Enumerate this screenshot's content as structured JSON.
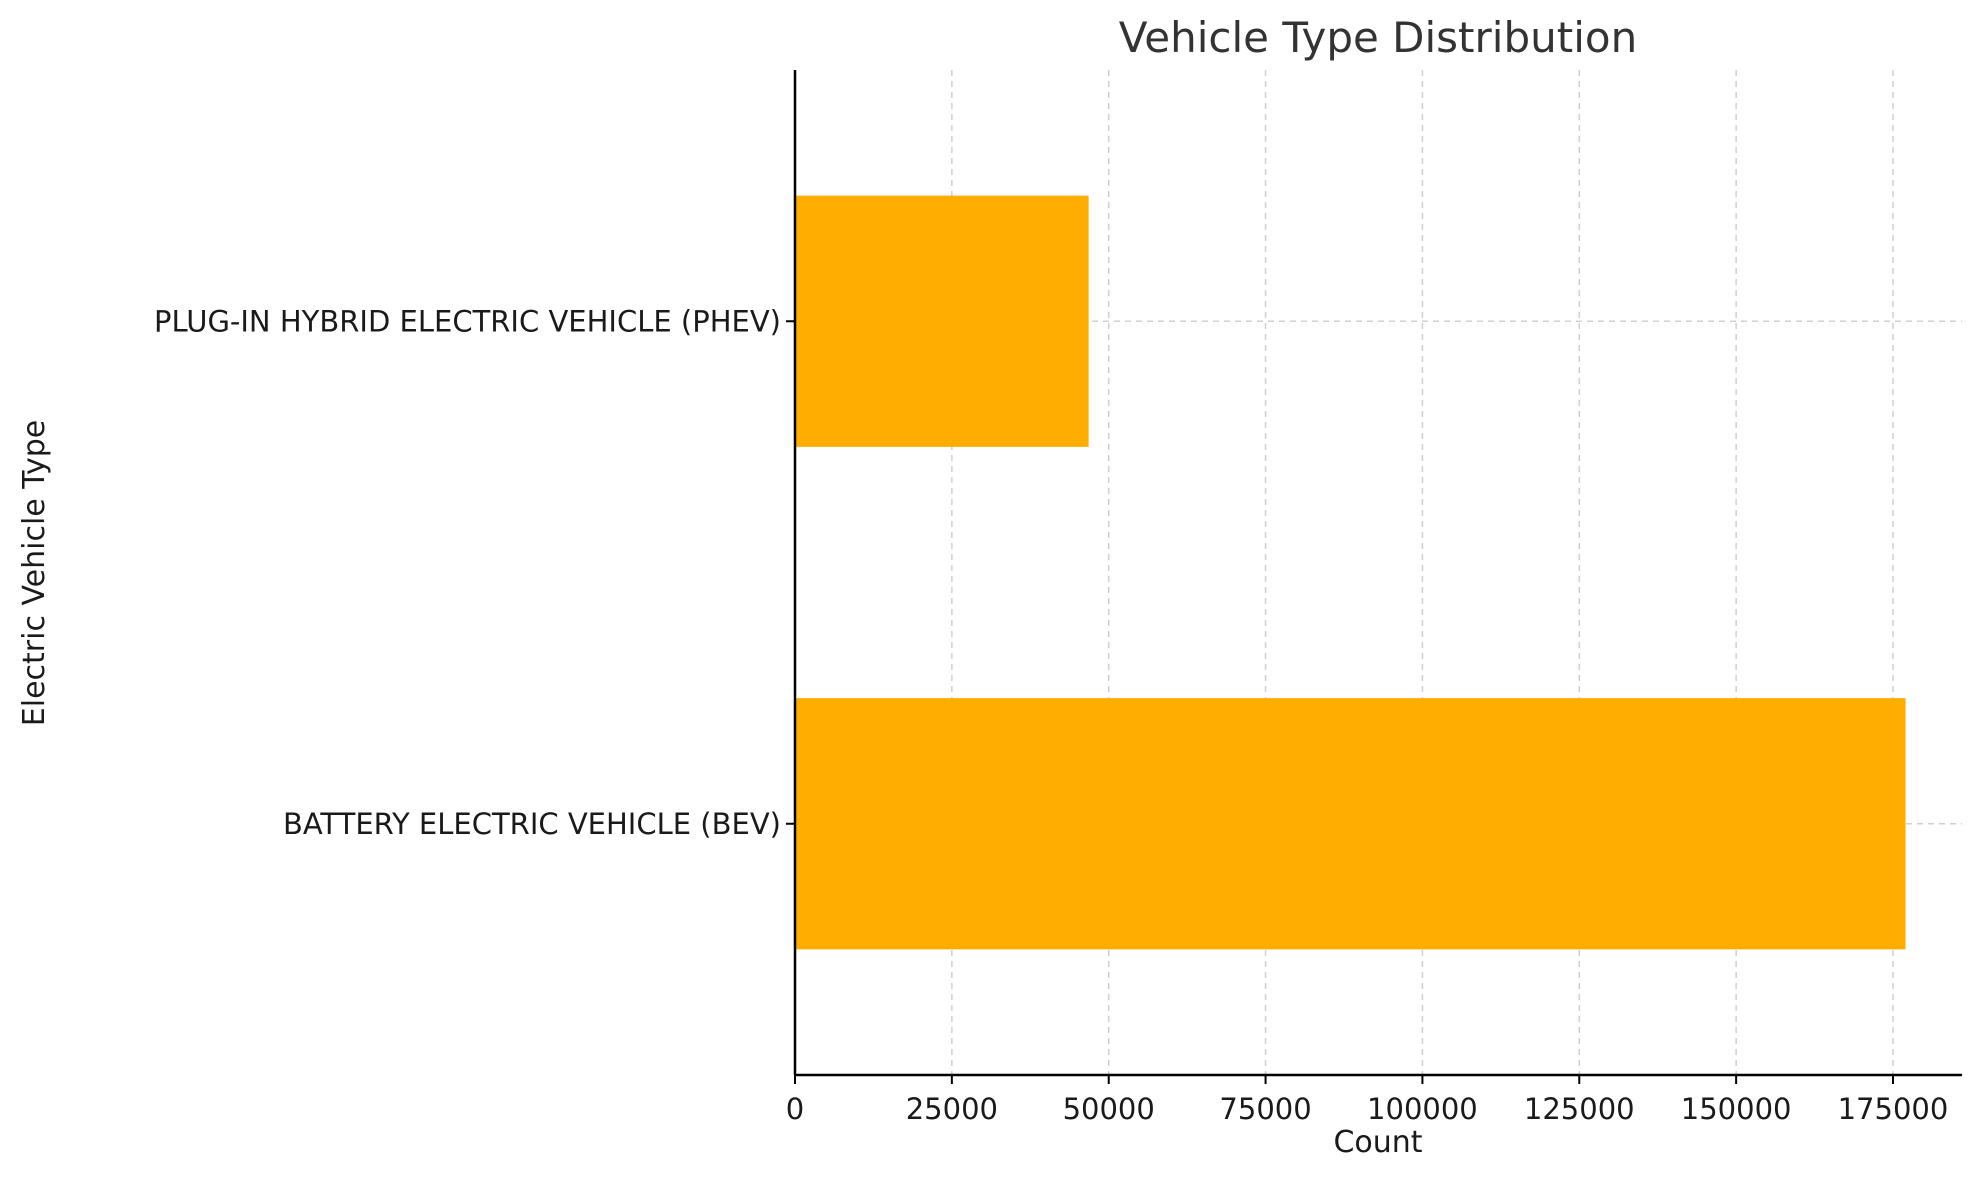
{
  "chart_data": {
    "type": "bar",
    "orientation": "horizontal",
    "title": "Vehicle Type Distribution",
    "xlabel": "Count",
    "ylabel": "Electric Vehicle Type",
    "categories": [
      "BATTERY ELECTRIC VEHICLE (BEV)",
      "PLUG-IN HYBRID ELECTRIC VEHICLE (PHEV)"
    ],
    "values": [
      177000,
      46800
    ],
    "xlim": [
      0,
      186000
    ],
    "xticks": [
      0,
      25000,
      50000,
      75000,
      100000,
      125000,
      150000,
      175000
    ],
    "xtick_labels": [
      "0",
      "25000",
      "50000",
      "75000",
      "100000",
      "125000",
      "150000",
      "175000"
    ],
    "grid": true,
    "colors": {
      "bar": "#ffae00"
    }
  }
}
